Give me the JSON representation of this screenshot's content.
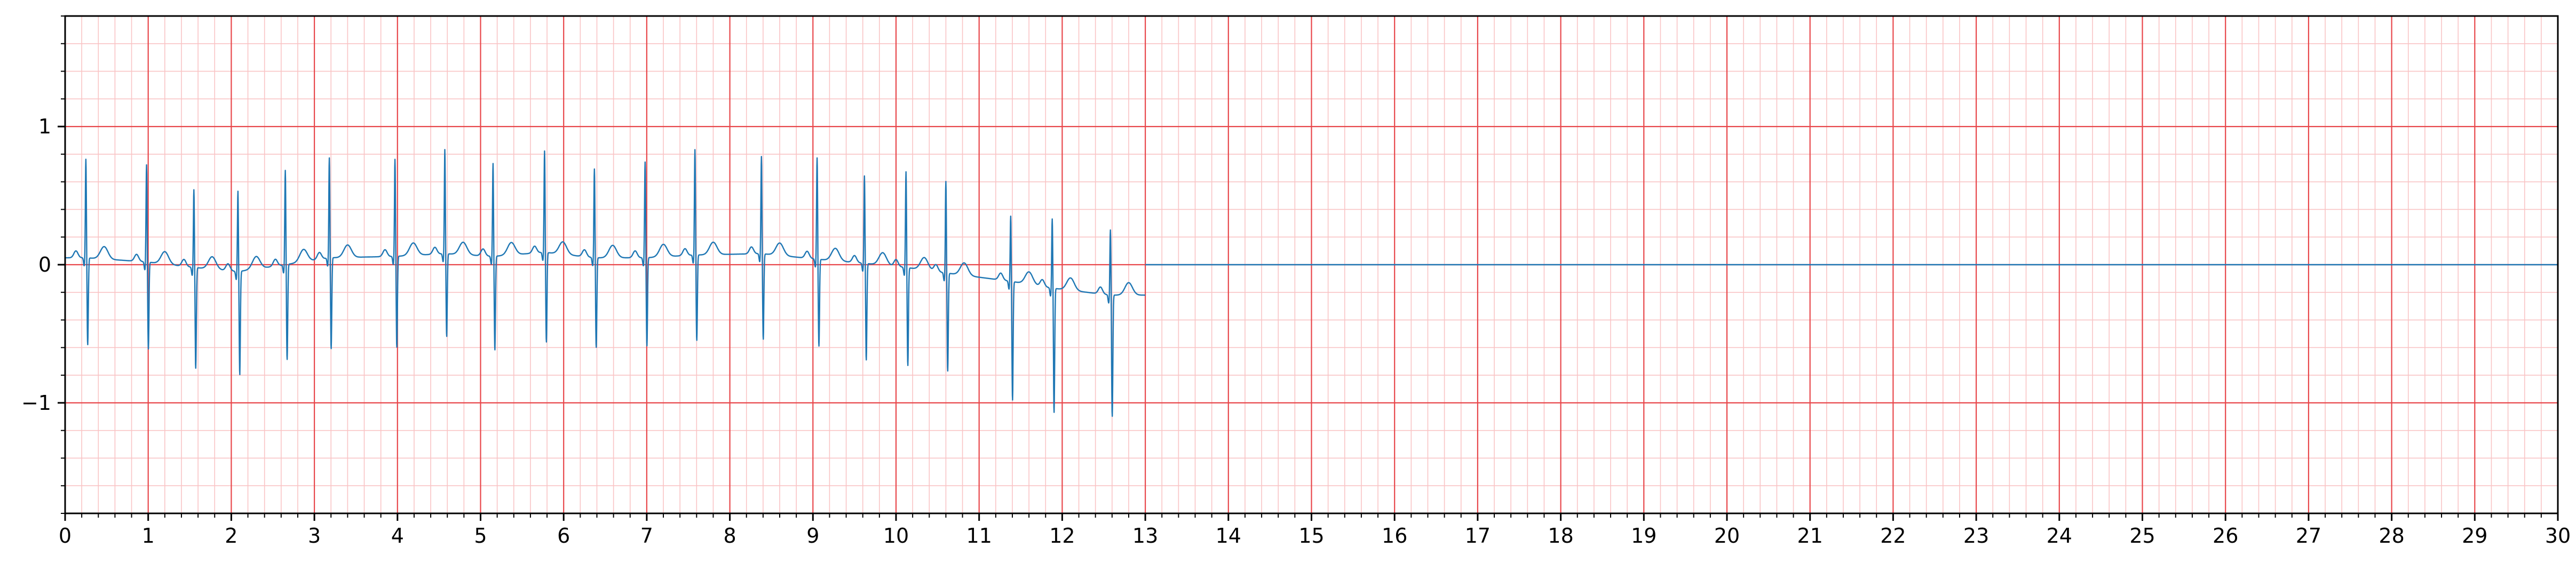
{
  "chart_data": {
    "type": "line",
    "title": "",
    "xlabel": "",
    "ylabel": "",
    "xlim": [
      0,
      30
    ],
    "ylim": [
      -1.8,
      1.8
    ],
    "grid": true,
    "x_major_step": 1,
    "x_minor_step": 0.2,
    "y_major_step": 1,
    "y_minor_step": 0.2,
    "x_tick_labels": [
      "0",
      "1",
      "2",
      "3",
      "4",
      "5",
      "6",
      "7",
      "8",
      "9",
      "10",
      "11",
      "12",
      "13",
      "14",
      "15",
      "16",
      "17",
      "18",
      "19",
      "20",
      "21",
      "22",
      "23",
      "24",
      "25",
      "26",
      "27",
      "28",
      "29",
      "30"
    ],
    "y_tick_values": [
      1,
      0,
      -1
    ],
    "y_tick_labels": [
      "1",
      "0",
      "−1"
    ],
    "colors": {
      "trace": "#1f77b4",
      "grid_major": "#e8474b",
      "grid_minor": "#f9c4c5",
      "axis": "#000000"
    },
    "series": [
      {
        "signal_end": 13.0,
        "baseline_after_end": 0.0,
        "beats": [
          {
            "t": 0.25,
            "r": 0.72,
            "s": -0.63,
            "base": 0.05
          },
          {
            "t": 0.98,
            "r": 0.71,
            "s": -0.63,
            "base": 0.02
          },
          {
            "t": 1.55,
            "r": 0.57,
            "s": -0.73,
            "base": -0.02
          },
          {
            "t": 2.08,
            "r": 0.59,
            "s": -0.75,
            "base": -0.05
          },
          {
            "t": 2.65,
            "r": 0.69,
            "s": -0.69,
            "base": 0.0
          },
          {
            "t": 3.18,
            "r": 0.73,
            "s": -0.66,
            "base": 0.05
          },
          {
            "t": 3.97,
            "r": 0.71,
            "s": -0.66,
            "base": 0.06
          },
          {
            "t": 4.57,
            "r": 0.76,
            "s": -0.6,
            "base": 0.08
          },
          {
            "t": 5.15,
            "r": 0.68,
            "s": -0.68,
            "base": 0.06
          },
          {
            "t": 5.77,
            "r": 0.74,
            "s": -0.65,
            "base": 0.09
          },
          {
            "t": 6.37,
            "r": 0.65,
            "s": -0.65,
            "base": 0.05
          },
          {
            "t": 6.98,
            "r": 0.7,
            "s": -0.64,
            "base": 0.05
          },
          {
            "t": 7.58,
            "r": 0.77,
            "s": -0.62,
            "base": 0.07
          },
          {
            "t": 8.38,
            "r": 0.71,
            "s": -0.62,
            "base": 0.08
          },
          {
            "t": 9.05,
            "r": 0.74,
            "s": -0.63,
            "base": 0.04
          },
          {
            "t": 9.62,
            "r": 0.64,
            "s": -0.7,
            "base": 0.01
          },
          {
            "t": 10.12,
            "r": 0.7,
            "s": -0.71,
            "base": -0.02
          },
          {
            "t": 10.6,
            "r": 0.67,
            "s": -0.71,
            "base": -0.06
          },
          {
            "t": 11.38,
            "r": 0.48,
            "s": -0.86,
            "base": -0.12
          },
          {
            "t": 11.88,
            "r": 0.51,
            "s": -0.9,
            "base": -0.17
          },
          {
            "t": 12.58,
            "r": 0.48,
            "s": -0.88,
            "base": -0.22
          }
        ]
      }
    ]
  }
}
